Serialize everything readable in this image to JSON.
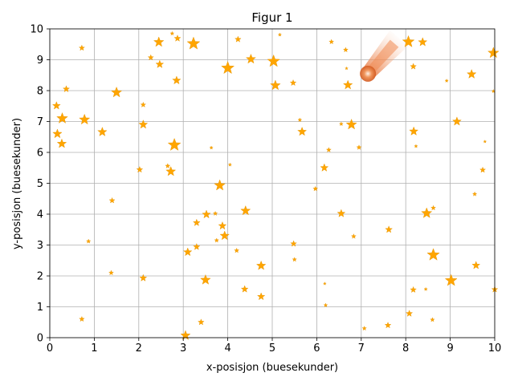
{
  "chart_data": {
    "type": "scatter",
    "title": "Figur 1",
    "xlabel": "x-posisjon (buesekunder)",
    "ylabel": "y-posisjon (buesekunder)",
    "xlim": [
      0,
      10
    ],
    "ylim": [
      0,
      10
    ],
    "grid": true,
    "xticks": [
      "0",
      "1",
      "2",
      "3",
      "4",
      "5",
      "6",
      "7",
      "8",
      "9",
      "10"
    ],
    "yticks": [
      "0",
      "1",
      "2",
      "3",
      "4",
      "5",
      "6",
      "7",
      "8",
      "9",
      "10"
    ],
    "marker": "star",
    "marker_color": "#ffa500",
    "comet": {
      "x": 7.15,
      "y": 8.55,
      "tail_x": 7.85,
      "tail_y": 9.7,
      "head_color": "#e06a2c",
      "tail_color": "#f2a77a"
    },
    "series": [
      {
        "points": [
          [
            0.72,
            9.38,
            0.8
          ],
          [
            2.45,
            9.57,
            1.8
          ],
          [
            2.87,
            9.69,
            1.0
          ],
          [
            2.75,
            9.85,
            0.4
          ],
          [
            3.23,
            9.52,
            2.4
          ],
          [
            4.23,
            9.66,
            0.9
          ],
          [
            5.17,
            9.81,
            0.3
          ],
          [
            6.33,
            9.58,
            0.6
          ],
          [
            6.65,
            9.32,
            0.6
          ],
          [
            8.06,
            9.58,
            2.2
          ],
          [
            8.38,
            9.57,
            1.5
          ],
          [
            9.97,
            9.22,
            2.0
          ],
          [
            2.27,
            9.07,
            0.8
          ],
          [
            2.47,
            8.85,
            1.3
          ],
          [
            4.0,
            8.73,
            2.4
          ],
          [
            4.52,
            9.02,
            1.7
          ],
          [
            5.03,
            8.95,
            2.3
          ],
          [
            6.67,
            8.72,
            0.2
          ],
          [
            8.17,
            8.78,
            0.9
          ],
          [
            8.92,
            8.32,
            0.3
          ],
          [
            9.48,
            8.53,
            1.6
          ],
          [
            0.37,
            8.05,
            1.0
          ],
          [
            1.5,
            7.94,
            1.9
          ],
          [
            2.1,
            7.54,
            0.7
          ],
          [
            2.85,
            8.33,
            1.4
          ],
          [
            5.07,
            8.17,
            1.8
          ],
          [
            5.47,
            8.25,
            0.9
          ],
          [
            6.7,
            8.18,
            1.6
          ],
          [
            9.97,
            7.98,
            0.3
          ],
          [
            0.15,
            7.51,
            1.3
          ],
          [
            0.28,
            7.1,
            2.0
          ],
          [
            0.78,
            7.06,
            1.9
          ],
          [
            1.18,
            6.66,
            1.6
          ],
          [
            2.1,
            6.9,
            1.5
          ],
          [
            5.62,
            7.05,
            0.4
          ],
          [
            5.67,
            6.67,
            1.5
          ],
          [
            6.55,
            6.92,
            0.4
          ],
          [
            6.78,
            6.9,
            1.9
          ],
          [
            8.18,
            6.68,
            1.5
          ],
          [
            9.15,
            7.0,
            1.5
          ],
          [
            0.17,
            6.6,
            1.6
          ],
          [
            0.27,
            6.28,
            1.6
          ],
          [
            2.8,
            6.24,
            2.4
          ],
          [
            3.63,
            6.15,
            0.3
          ],
          [
            6.27,
            6.08,
            0.6
          ],
          [
            6.95,
            6.16,
            0.6
          ],
          [
            8.23,
            6.2,
            0.3
          ],
          [
            9.78,
            6.35,
            0.2
          ],
          [
            2.02,
            5.44,
            0.9
          ],
          [
            2.65,
            5.56,
            0.6
          ],
          [
            2.72,
            5.38,
            1.7
          ],
          [
            4.05,
            5.6,
            0.3
          ],
          [
            6.17,
            5.5,
            1.3
          ],
          [
            9.73,
            5.43,
            0.8
          ],
          [
            1.4,
            4.44,
            0.8
          ],
          [
            3.82,
            4.93,
            2.0
          ],
          [
            5.97,
            4.82,
            0.6
          ],
          [
            9.55,
            4.65,
            0.5
          ],
          [
            3.52,
            3.99,
            1.4
          ],
          [
            3.72,
            4.02,
            0.5
          ],
          [
            4.4,
            4.11,
            1.7
          ],
          [
            6.55,
            4.02,
            1.3
          ],
          [
            8.47,
            4.03,
            1.9
          ],
          [
            8.62,
            4.2,
            0.6
          ],
          [
            0.87,
            3.12,
            0.5
          ],
          [
            3.3,
            3.72,
            1.1
          ],
          [
            3.88,
            3.62,
            1.3
          ],
          [
            3.93,
            3.3,
            1.6
          ],
          [
            3.75,
            3.15,
            0.5
          ],
          [
            5.48,
            3.04,
            0.9
          ],
          [
            6.83,
            3.28,
            0.6
          ],
          [
            7.62,
            3.5,
            1.1
          ],
          [
            3.1,
            2.77,
            1.4
          ],
          [
            3.3,
            2.94,
            1.0
          ],
          [
            4.2,
            2.82,
            0.6
          ],
          [
            5.5,
            2.53,
            0.5
          ],
          [
            4.75,
            2.33,
            1.6
          ],
          [
            8.62,
            2.68,
            2.3
          ],
          [
            9.58,
            2.34,
            1.3
          ],
          [
            1.38,
            2.1,
            0.6
          ],
          [
            2.1,
            1.93,
            1.1
          ],
          [
            3.5,
            1.87,
            1.8
          ],
          [
            4.38,
            1.57,
            1.1
          ],
          [
            6.18,
            1.75,
            0.2
          ],
          [
            8.17,
            1.55,
            0.9
          ],
          [
            8.45,
            1.57,
            0.3
          ],
          [
            9.02,
            1.85,
            2.2
          ],
          [
            10.0,
            1.56,
            0.9
          ],
          [
            4.75,
            1.33,
            1.2
          ],
          [
            6.2,
            1.05,
            0.4
          ],
          [
            8.08,
            0.78,
            1.0
          ],
          [
            0.72,
            0.6,
            0.7
          ],
          [
            3.4,
            0.5,
            0.9
          ],
          [
            7.07,
            0.3,
            0.5
          ],
          [
            7.6,
            0.4,
            0.9
          ],
          [
            8.6,
            0.58,
            0.5
          ],
          [
            3.05,
            0.07,
            1.7
          ]
        ]
      }
    ]
  }
}
